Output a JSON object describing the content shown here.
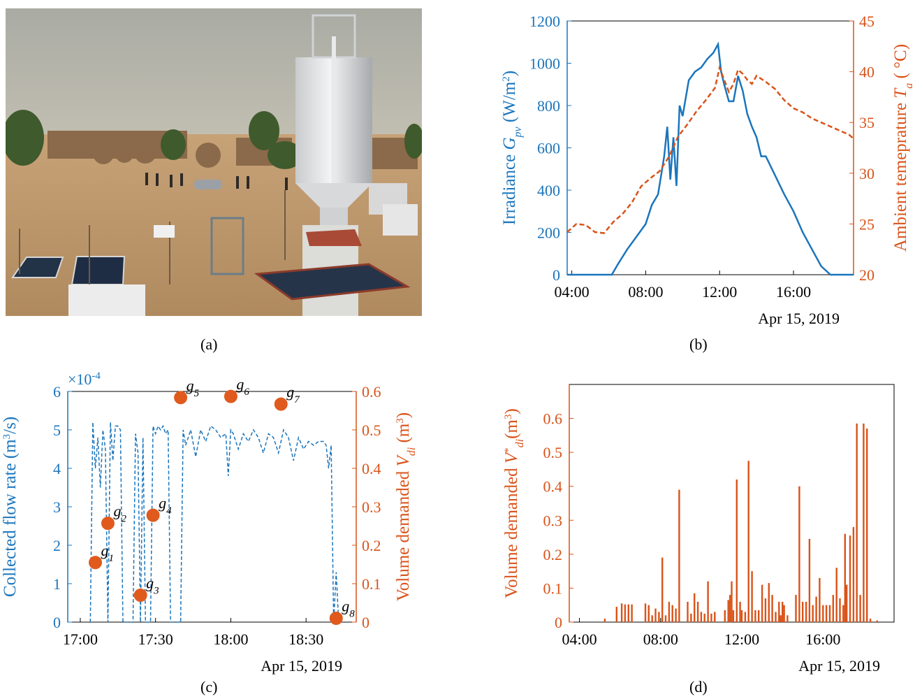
{
  "panels": {
    "a": {
      "label": "(a)"
    },
    "b": {
      "label": "(b)"
    },
    "c": {
      "label": "(c)"
    },
    "d": {
      "label": "(d)"
    }
  },
  "colors": {
    "blue": "#1b75bc",
    "orange": "#d95319",
    "marker": "#e05a1e"
  },
  "chart_data": [
    {
      "panel": "b",
      "type": "line",
      "date_label": "Apr 15, 2019",
      "x_ticks": [
        "04:00",
        "08:00",
        "12:00",
        "16:00"
      ],
      "xlim": [
        "03:45",
        "19:15"
      ],
      "left_axis": {
        "label": "Irradiance G_pv (W/m^2)",
        "ylim": [
          0,
          1200
        ],
        "ticks": [
          0,
          200,
          400,
          600,
          800,
          1000,
          1200
        ],
        "color": "#1b75bc"
      },
      "right_axis": {
        "label": "Ambient temeprature T_a (°C)",
        "ylim": [
          20,
          45
        ],
        "ticks": [
          20,
          25,
          30,
          35,
          40,
          45
        ],
        "color": "#d95319"
      },
      "series": [
        {
          "axis": "left",
          "style": "solid",
          "x": [
            "03:45",
            "06:10",
            "06:30",
            "07:00",
            "07:30",
            "08:00",
            "08:20",
            "08:40",
            "09:00",
            "09:10",
            "09:20",
            "09:30",
            "09:40",
            "09:50",
            "10:00",
            "10:20",
            "10:40",
            "11:00",
            "11:20",
            "11:40",
            "11:55",
            "12:05",
            "12:15",
            "12:30",
            "12:45",
            "13:00",
            "13:15",
            "13:30",
            "13:45",
            "14:00",
            "14:15",
            "14:30",
            "15:00",
            "15:30",
            "16:00",
            "16:30",
            "17:00",
            "17:30",
            "18:00",
            "18:15",
            "19:15"
          ],
          "y": [
            0,
            0,
            50,
            120,
            180,
            240,
            330,
            380,
            560,
            700,
            450,
            650,
            420,
            800,
            750,
            920,
            960,
            980,
            1020,
            1050,
            1090,
            960,
            900,
            820,
            820,
            940,
            870,
            760,
            700,
            650,
            560,
            560,
            470,
            380,
            300,
            200,
            120,
            40,
            0,
            0,
            0
          ]
        },
        {
          "axis": "right",
          "style": "dashed",
          "x": [
            "03:45",
            "04:15",
            "04:45",
            "05:15",
            "05:45",
            "06:15",
            "06:45",
            "07:15",
            "07:45",
            "08:15",
            "08:45",
            "09:15",
            "09:45",
            "10:15",
            "10:45",
            "11:15",
            "11:45",
            "12:00",
            "12:15",
            "12:30",
            "12:45",
            "13:00",
            "13:15",
            "13:30",
            "13:45",
            "14:00",
            "14:30",
            "15:00",
            "15:30",
            "16:00",
            "16:30",
            "17:00",
            "17:30",
            "18:00",
            "18:30",
            "19:00",
            "19:15"
          ],
          "y": [
            24.2,
            25.0,
            24.9,
            24.2,
            24.1,
            25.2,
            26.0,
            27.1,
            28.7,
            29.5,
            30.2,
            31.6,
            33.6,
            34.8,
            36.1,
            37.2,
            38.4,
            40.4,
            39.2,
            38.0,
            38.8,
            40.2,
            39.8,
            39.2,
            38.8,
            39.6,
            39.0,
            38.3,
            37.2,
            36.4,
            36.0,
            35.4,
            35.0,
            34.6,
            34.2,
            33.8,
            33.4
          ]
        }
      ]
    },
    {
      "panel": "c",
      "type": "line",
      "date_label": "Apr 15, 2019",
      "x_ticks": [
        "17:00",
        "17:30",
        "18:00",
        "18:30"
      ],
      "xlim": [
        "16:55",
        "18:50"
      ],
      "left_axis": {
        "label": "Collected flow rate (m^3/s)",
        "ylim": [
          0,
          6
        ],
        "ticks": [
          0,
          1,
          2,
          3,
          4,
          5,
          6
        ],
        "multiplier": "×10^-4",
        "color": "#1b75bc"
      },
      "right_axis": {
        "label": "Volume demanded V_di (m^3)",
        "ylim": [
          0,
          0.6
        ],
        "ticks": [
          0,
          0.1,
          0.2,
          0.3,
          0.4,
          0.5,
          0.6
        ],
        "color": "#d95319"
      },
      "series": [
        {
          "axis": "left",
          "style": "dashed",
          "x": [
            "17:04",
            "17:05",
            "17:06",
            "17:07",
            "17:08",
            "17:09",
            "17:10",
            "17:11",
            "17:12",
            "17:13",
            "17:14",
            "17:15",
            "17:16",
            "17:17",
            "17:18",
            "17:19",
            "17:20",
            "17:21",
            "17:22",
            "17:23",
            "17:24",
            "17:25",
            "17:26",
            "17:27",
            "17:28",
            "17:29",
            "17:30",
            "17:31",
            "17:32",
            "17:33",
            "17:34",
            "17:35",
            "17:36",
            "17:37",
            "17:38",
            "17:39",
            "17:40",
            "17:41",
            "17:42",
            "17:44",
            "17:46",
            "17:48",
            "17:50",
            "17:52",
            "17:54",
            "17:56",
            "17:58",
            "17:59",
            "18:00",
            "18:01",
            "18:03",
            "18:05",
            "18:07",
            "18:09",
            "18:11",
            "18:13",
            "18:15",
            "18:17",
            "18:19",
            "18:21",
            "18:23",
            "18:25",
            "18:27",
            "18:29",
            "18:31",
            "18:33",
            "18:35",
            "18:37",
            "18:38",
            "18:39",
            "18:40",
            "18:41",
            "18:42",
            "18:43",
            "18:44",
            "18:45"
          ],
          "y": [
            0,
            5.2,
            4.0,
            4.8,
            3.5,
            5.0,
            4.5,
            0,
            5.2,
            4.2,
            5.1,
            5.1,
            5.0,
            0,
            0,
            0,
            0,
            0,
            4.9,
            4.4,
            0,
            4.8,
            0,
            0,
            0,
            5.1,
            4.9,
            5.1,
            5.0,
            5.1,
            4.9,
            5.0,
            0,
            0,
            0,
            0,
            0,
            5.0,
            4.6,
            5.0,
            4.3,
            5.0,
            4.7,
            5.1,
            5.0,
            4.8,
            4.9,
            3.8,
            5.0,
            4.9,
            4.5,
            4.9,
            4.7,
            5.0,
            4.8,
            4.4,
            4.9,
            4.8,
            4.4,
            5.0,
            4.8,
            4.2,
            4.8,
            4.5,
            4.7,
            4.6,
            4.7,
            4.7,
            4.6,
            4.0,
            4.6,
            0,
            1.3,
            0,
            0,
            0
          ]
        }
      ],
      "points": {
        "axis": "right",
        "labels": [
          "g1",
          "g2",
          "g3",
          "g4",
          "g5",
          "g6",
          "g7",
          "g8"
        ],
        "x": [
          "17:06",
          "17:11",
          "17:24",
          "17:29",
          "17:40",
          "18:00",
          "18:20",
          "18:42"
        ],
        "y": [
          0.155,
          0.257,
          0.07,
          0.278,
          0.584,
          0.587,
          0.567,
          0.01
        ]
      }
    },
    {
      "panel": "d",
      "type": "bar",
      "date_label": "Apr 15, 2019",
      "x_ticks": [
        "04:00",
        "08:00",
        "12:00",
        "16:00"
      ],
      "xlim": [
        "03:30",
        "19:30"
      ],
      "ylabel": "Volume demanded V*_di (m^3)",
      "ylim": [
        0,
        0.7
      ],
      "y_ticks": [
        0,
        0.1,
        0.2,
        0.3,
        0.4,
        0.5,
        0.6
      ],
      "color": "#d95319",
      "x": [
        "05:15",
        "05:50",
        "06:05",
        "06:15",
        "06:25",
        "06:35",
        "07:15",
        "07:25",
        "07:35",
        "07:45",
        "07:55",
        "08:05",
        "08:15",
        "08:25",
        "08:35",
        "08:45",
        "08:55",
        "09:20",
        "09:30",
        "09:40",
        "09:50",
        "10:00",
        "10:10",
        "10:20",
        "10:30",
        "10:40",
        "11:10",
        "11:20",
        "11:25",
        "11:30",
        "11:35",
        "11:45",
        "11:55",
        "12:00",
        "12:10",
        "12:20",
        "12:30",
        "12:40",
        "12:50",
        "13:00",
        "13:10",
        "13:20",
        "13:30",
        "13:40",
        "13:50",
        "13:55",
        "14:00",
        "14:05",
        "14:15",
        "14:40",
        "14:50",
        "15:00",
        "15:10",
        "15:20",
        "15:30",
        "15:40",
        "15:50",
        "16:00",
        "16:10",
        "16:20",
        "16:30",
        "16:40",
        "16:50",
        "17:00",
        "17:05",
        "17:10",
        "17:20",
        "17:30",
        "17:40",
        "17:50",
        "18:00",
        "18:10",
        "18:20",
        "18:40"
      ],
      "values": [
        0.01,
        0.045,
        0.055,
        0.052,
        0.052,
        0.052,
        0.055,
        0.05,
        0.02,
        0.04,
        0.03,
        0.19,
        0.02,
        0.06,
        0.05,
        0.04,
        0.39,
        0.06,
        0.025,
        0.085,
        0.06,
        0.03,
        0.025,
        0.12,
        0.025,
        0.03,
        0.035,
        0.065,
        0.08,
        0.12,
        0.035,
        0.42,
        0.06,
        0.035,
        0.03,
        0.475,
        0.15,
        0.035,
        0.035,
        0.11,
        0.07,
        0.115,
        0.08,
        0.03,
        0.06,
        0.02,
        0.06,
        0.05,
        0.02,
        0.08,
        0.4,
        0.06,
        0.06,
        0.245,
        0.05,
        0.075,
        0.13,
        0.05,
        0.05,
        0.05,
        0.08,
        0.16,
        0.07,
        0.05,
        0.26,
        0.11,
        0.255,
        0.28,
        0.585,
        0.08,
        0.585,
        0.57,
        0.01,
        0.005
      ]
    }
  ]
}
